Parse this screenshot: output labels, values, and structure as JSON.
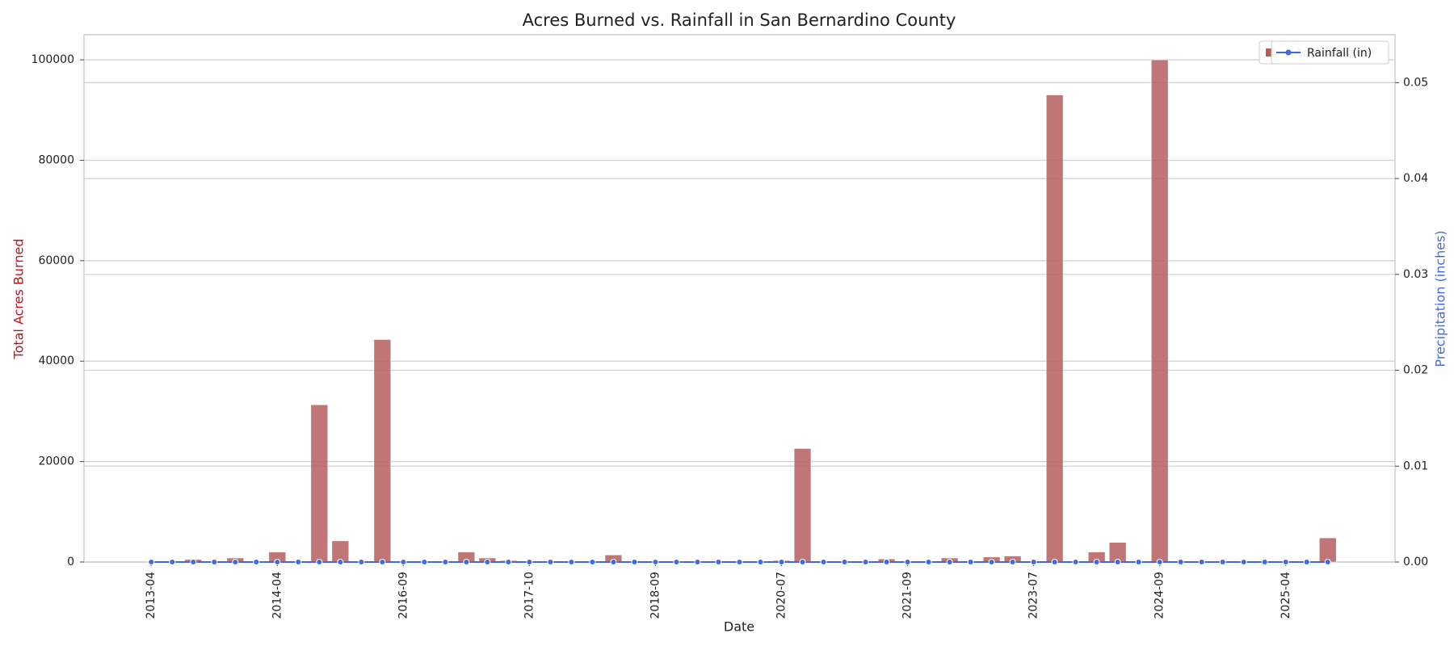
{
  "chart_data": {
    "type": "bar",
    "title": "Acres Burned vs. Rainfall in San Bernardino County",
    "xlabel": "Date",
    "ylabel": "Total Acres Burned",
    "y2label": "Precipitation (inches)",
    "categories": [
      "2013-04",
      null,
      null,
      null,
      null,
      null,
      "2014-04",
      null,
      null,
      null,
      null,
      null,
      "2016-09",
      null,
      null,
      null,
      null,
      null,
      "2017-10",
      null,
      null,
      null,
      null,
      null,
      "2018-09",
      null,
      null,
      null,
      null,
      null,
      "2020-07",
      null,
      null,
      null,
      null,
      null,
      "2021-09",
      null,
      null,
      null,
      null,
      null,
      "2023-07",
      null,
      null,
      null,
      null,
      null,
      "2024-09",
      null,
      null,
      null,
      null,
      null,
      "2025-04",
      null,
      null
    ],
    "series": [
      {
        "name": "Acres Burned",
        "type": "bar",
        "color": "#b55d5f",
        "values": [
          0,
          0,
          500,
          0,
          800,
          0,
          2000,
          0,
          31300,
          4200,
          0,
          44300,
          0,
          0,
          0,
          2000,
          800,
          300,
          0,
          0,
          0,
          0,
          1400,
          0,
          0,
          0,
          0,
          0,
          0,
          200,
          300,
          22600,
          0,
          0,
          0,
          600,
          0,
          200,
          800,
          0,
          1000,
          1200,
          0,
          93000,
          0,
          2000,
          3900,
          0,
          100000,
          0,
          0,
          0,
          0,
          0,
          0,
          0,
          4800
        ]
      },
      {
        "name": "Rainfall (in)",
        "type": "line",
        "axis": "y2",
        "color": "#4169e1",
        "values": [
          0,
          0,
          0,
          0,
          0,
          0,
          0,
          0,
          0,
          0,
          0,
          0,
          0,
          0,
          0,
          0,
          0,
          0,
          0,
          0,
          0,
          0,
          0,
          0,
          0,
          0,
          0,
          0,
          0,
          0,
          0,
          0,
          0,
          0,
          0,
          0,
          0,
          0,
          0,
          0,
          0,
          0,
          0,
          0,
          0,
          0,
          0,
          0,
          0,
          0,
          0,
          0,
          0,
          0,
          0,
          0,
          0
        ]
      }
    ],
    "ylim": [
      0,
      105000
    ],
    "yticks": [
      0,
      20000,
      40000,
      60000,
      80000,
      100000
    ],
    "y2lim": [
      0,
      0.055
    ],
    "y2ticks": [
      {
        "value": 0,
        "label": "0.00"
      },
      {
        "value": 0.01,
        "label": "0.01"
      },
      {
        "value": 0.02,
        "label": "0.02"
      },
      {
        "value": 0.03,
        "label": "0.03"
      },
      {
        "value": 0.04,
        "label": "0.04"
      },
      {
        "value": 0.05,
        "label": "0.05"
      }
    ],
    "ycolor": "#c0141c",
    "y2color": "#4169e1",
    "grid": true,
    "legend": "upper right"
  }
}
